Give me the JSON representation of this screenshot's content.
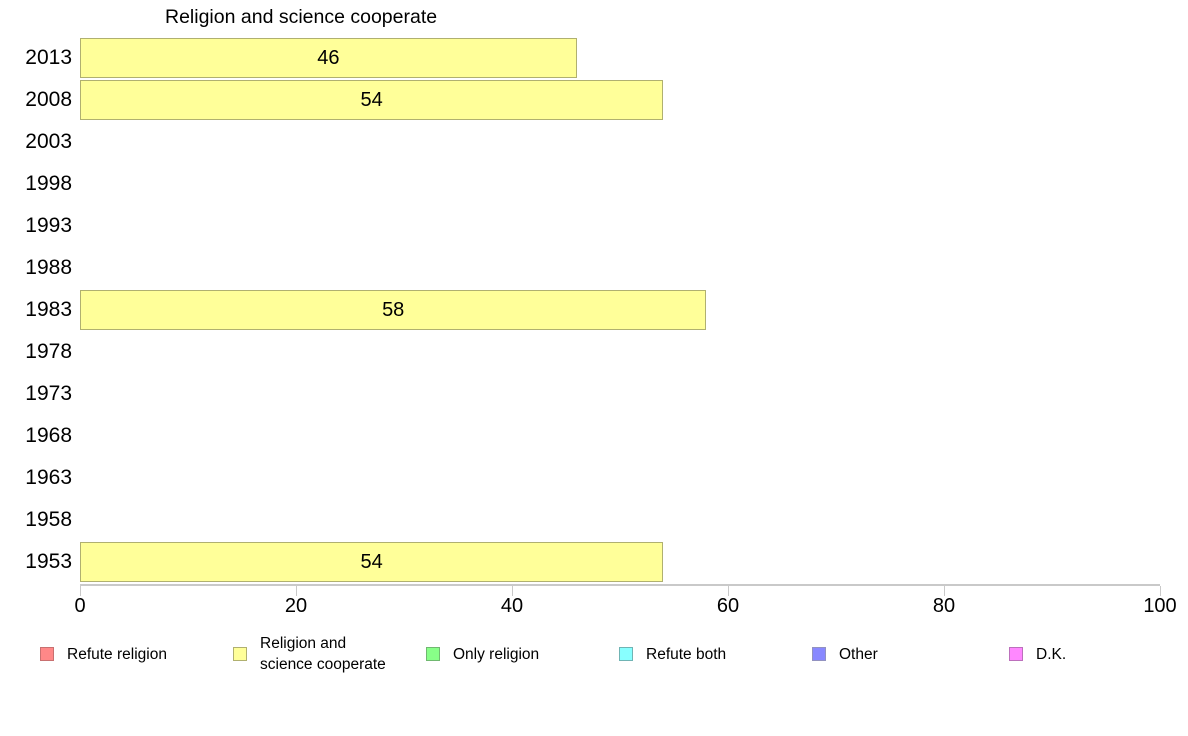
{
  "chart_data": {
    "type": "bar",
    "orientation": "horizontal",
    "title": "Religion and science cooperate",
    "series_name": "Religion and science cooperate",
    "categories": [
      "2013",
      "2008",
      "2003",
      "1998",
      "1993",
      "1988",
      "1983",
      "1978",
      "1973",
      "1968",
      "1963",
      "1958",
      "1953"
    ],
    "values": [
      46,
      54,
      null,
      null,
      null,
      null,
      58,
      null,
      null,
      null,
      null,
      null,
      54
    ],
    "xlabel": "",
    "ylabel": "",
    "xlim": [
      0,
      100
    ],
    "x_ticks": [
      0,
      20,
      40,
      60,
      80,
      100
    ],
    "grid": false,
    "legend_position": "bottom",
    "colors": {
      "bar_fill": "#ffff99",
      "bar_stroke": "#b0b070",
      "axis_line": "#c9c9c9",
      "text": "#000000",
      "background": "#ffffff"
    },
    "legend": [
      {
        "label": "Refute religion",
        "color": "#ff8888",
        "border": "#c87070"
      },
      {
        "label": "Religion and\nscience cooperate",
        "color": "#ffff99",
        "border": "#b0b070"
      },
      {
        "label": "Only religion",
        "color": "#88ff88",
        "border": "#70b870"
      },
      {
        "label": "Refute both",
        "color": "#88ffff",
        "border": "#70b4b4"
      },
      {
        "label": "Other",
        "color": "#8888ff",
        "border": "#9292c0"
      },
      {
        "label": "D.K.",
        "color": "#ff88ff",
        "border": "#bc70bc"
      }
    ]
  }
}
